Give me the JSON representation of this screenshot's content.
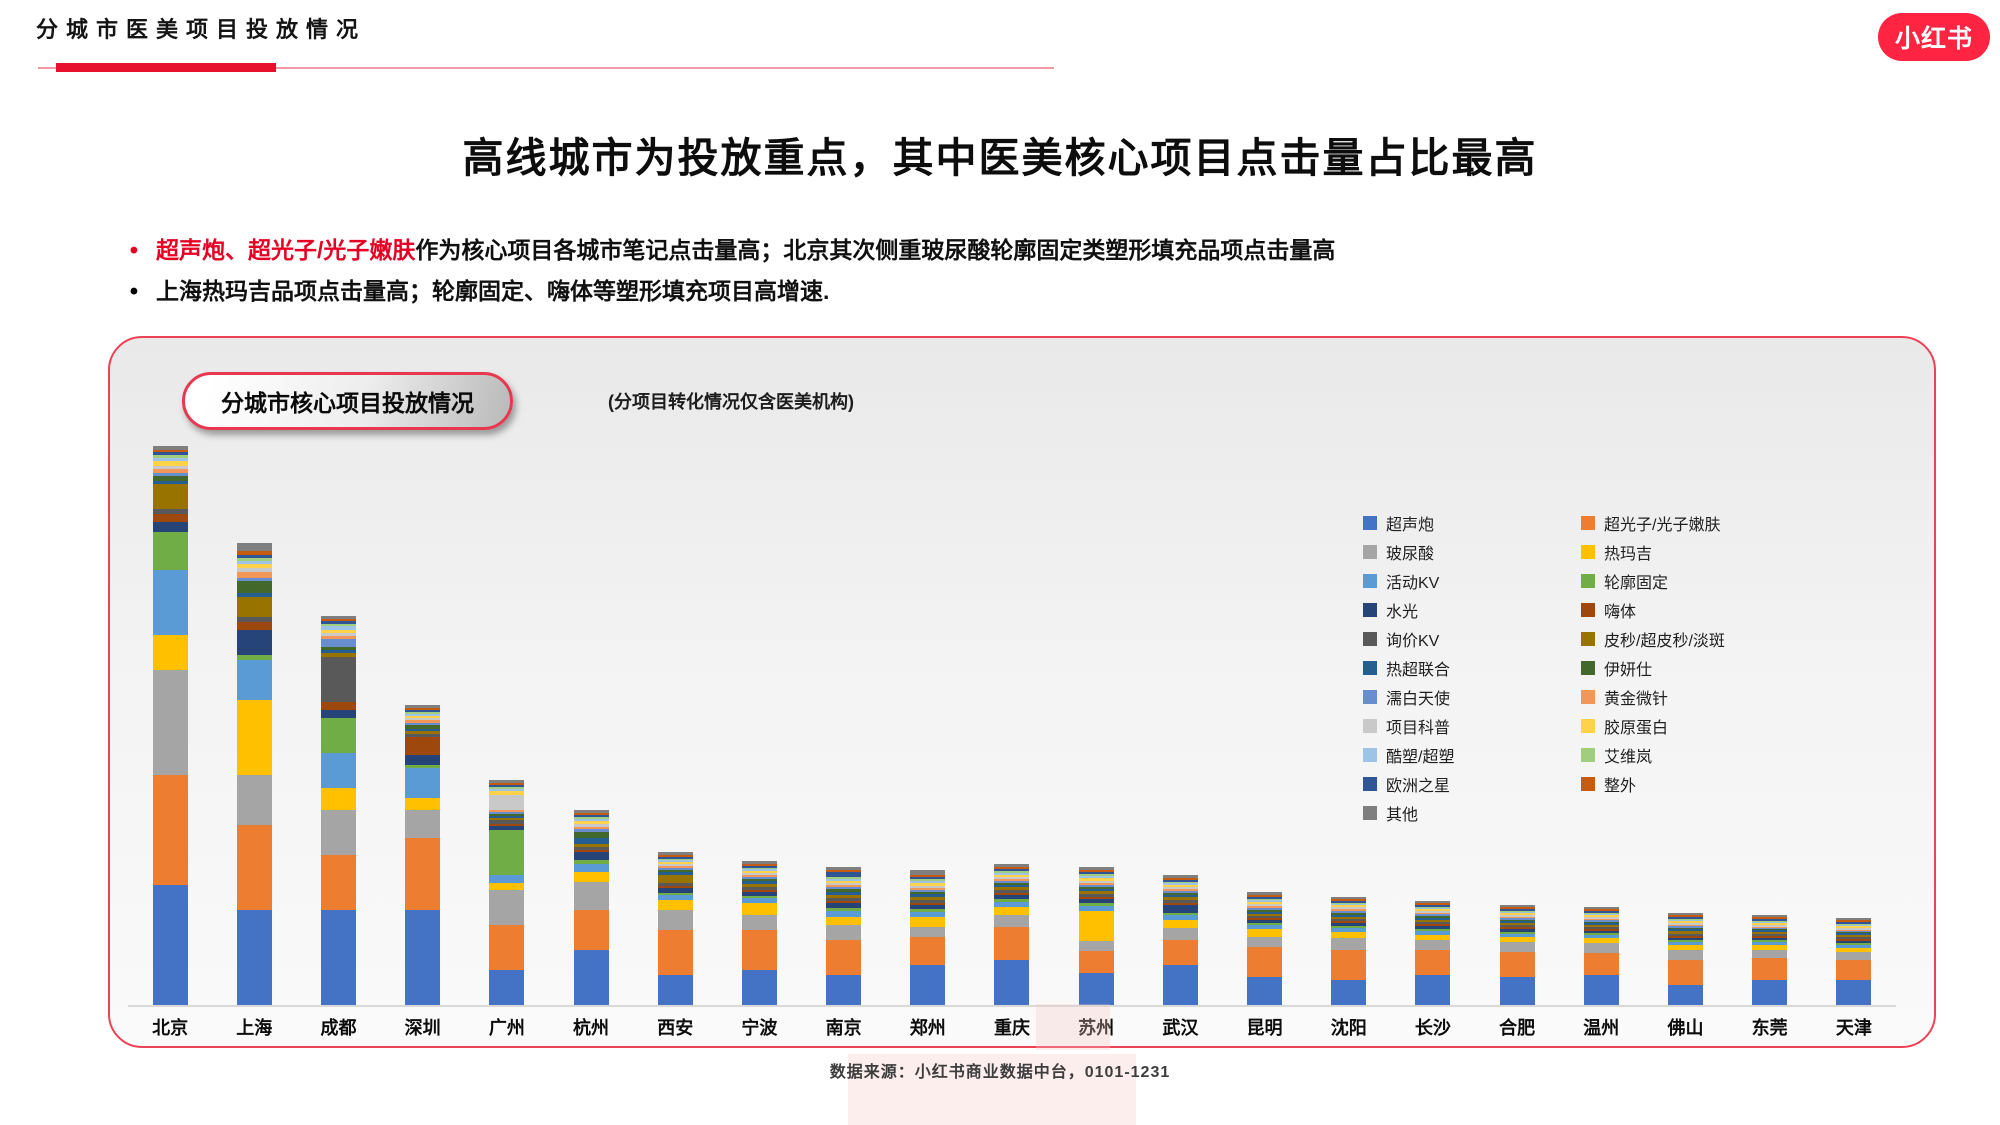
{
  "header": {
    "kicker": "分城市医美项目投放情况",
    "logo_text": "小红书"
  },
  "title": "高线城市为投放重点，其中医美核心项目点击量占比最高",
  "bullets": [
    {
      "highlight": "超声炮、超光子/光子嫩肤",
      "rest": "作为核心项目各城市笔记点击量高；北京其次侧重玻尿酸轮廓固定类塑形填充品项点击量高"
    },
    {
      "highlight": "",
      "rest": "上海热玛吉品项点击量高；轮廓固定、嗨体等塑形填充项目高增速."
    }
  ],
  "chart_card": {
    "pill_label": "分城市核心项目投放情况",
    "note": "(分项目转化情况仅含医美机构)"
  },
  "footer": {
    "source": "数据来源：小红书商业数据中台，0101-1231"
  },
  "chart_data": {
    "type": "bar",
    "stacked": true,
    "title": "分城市核心项目投放情况",
    "legend_position": "inside-right, two columns",
    "y_axis_visible": false,
    "values_are": "relative note-click volume, estimated from bar pixel heights",
    "categories": [
      "北京",
      "上海",
      "成都",
      "深圳",
      "广州",
      "杭州",
      "西安",
      "宁波",
      "南京",
      "郑州",
      "重庆",
      "苏州",
      "武汉",
      "昆明",
      "沈阳",
      "长沙",
      "合肥",
      "温州",
      "佛山",
      "东莞",
      "天津"
    ],
    "series": [
      {
        "name": "超声炮",
        "color": "#4472C4",
        "values": [
          120,
          95,
          95,
          95,
          35,
          55,
          30,
          35,
          30,
          40,
          45,
          32,
          40,
          28,
          25,
          30,
          28,
          30,
          20,
          25,
          25
        ]
      },
      {
        "name": "超光子/光子嫩肤",
        "color": "#ED7D31",
        "values": [
          110,
          85,
          55,
          72,
          45,
          40,
          45,
          40,
          35,
          28,
          33,
          22,
          25,
          30,
          30,
          25,
          25,
          22,
          25,
          22,
          20
        ]
      },
      {
        "name": "玻尿酸",
        "color": "#A5A5A5",
        "values": [
          105,
          50,
          45,
          28,
          35,
          28,
          20,
          15,
          15,
          10,
          12,
          10,
          12,
          10,
          12,
          10,
          10,
          10,
          10,
          8,
          8
        ]
      },
      {
        "name": "热玛吉",
        "color": "#FFC000",
        "values": [
          35,
          75,
          22,
          12,
          7,
          10,
          10,
          12,
          8,
          10,
          8,
          30,
          8,
          8,
          6,
          5,
          5,
          5,
          5,
          5,
          4
        ]
      },
      {
        "name": "活动KV",
        "color": "#5B9BD5",
        "values": [
          65,
          40,
          35,
          30,
          8,
          8,
          5,
          5,
          6,
          5,
          5,
          5,
          5,
          4,
          4,
          4,
          3,
          3,
          3,
          3,
          3
        ]
      },
      {
        "name": "轮廓固定",
        "color": "#70AD47",
        "values": [
          38,
          5,
          35,
          3,
          45,
          4,
          2,
          2,
          3,
          3,
          3,
          3,
          2,
          2,
          2,
          2,
          2,
          2,
          2,
          2,
          2
        ]
      },
      {
        "name": "水光",
        "color": "#264478",
        "values": [
          10,
          25,
          8,
          10,
          4,
          8,
          5,
          4,
          5,
          4,
          4,
          4,
          8,
          3,
          3,
          3,
          3,
          2,
          2,
          2,
          2
        ]
      },
      {
        "name": "嗨体",
        "color": "#9E480E",
        "values": [
          8,
          8,
          8,
          18,
          2,
          2,
          2,
          2,
          2,
          2,
          2,
          2,
          2,
          2,
          2,
          2,
          2,
          2,
          2,
          2,
          2
        ]
      },
      {
        "name": "询价KV",
        "color": "#595959",
        "values": [
          5,
          5,
          45,
          3,
          4,
          3,
          3,
          3,
          3,
          3,
          3,
          3,
          3,
          2,
          2,
          2,
          2,
          2,
          2,
          2,
          2
        ]
      },
      {
        "name": "皮秒/超皮秒/淡斑",
        "color": "#997300",
        "values": [
          25,
          20,
          4,
          3,
          2,
          3,
          8,
          3,
          3,
          3,
          3,
          3,
          3,
          2,
          2,
          2,
          2,
          2,
          3,
          2,
          2
        ]
      },
      {
        "name": "热超联合",
        "color": "#255E91",
        "values": [
          3,
          4,
          3,
          2,
          2,
          6,
          3,
          3,
          3,
          3,
          2,
          2,
          2,
          2,
          2,
          2,
          2,
          2,
          2,
          2,
          2
        ]
      },
      {
        "name": "伊妍仕",
        "color": "#43682B",
        "values": [
          5,
          12,
          3,
          4,
          2,
          6,
          2,
          2,
          3,
          2,
          2,
          2,
          2,
          2,
          2,
          2,
          1,
          1,
          1,
          1,
          1
        ]
      },
      {
        "name": "濡白天使",
        "color": "#698ED0",
        "values": [
          3,
          3,
          8,
          2,
          2,
          3,
          2,
          2,
          2,
          2,
          2,
          2,
          2,
          2,
          2,
          2,
          2,
          2,
          2,
          1,
          1
        ]
      },
      {
        "name": "黄金微针",
        "color": "#F1975A",
        "values": [
          4,
          6,
          3,
          3,
          2,
          2,
          2,
          2,
          2,
          2,
          2,
          2,
          2,
          2,
          2,
          1,
          1,
          1,
          1,
          1,
          1
        ]
      },
      {
        "name": "项目科普",
        "color": "#C9C9C9",
        "values": [
          3,
          4,
          3,
          2,
          15,
          3,
          2,
          2,
          2,
          2,
          2,
          2,
          2,
          2,
          2,
          2,
          2,
          2,
          2,
          2,
          2
        ]
      },
      {
        "name": "胶原蛋白",
        "color": "#FFD24B",
        "values": [
          5,
          4,
          3,
          2,
          4,
          3,
          2,
          2,
          2,
          3,
          2,
          3,
          2,
          2,
          2,
          2,
          2,
          2,
          2,
          2,
          2
        ]
      },
      {
        "name": "酷塑/超塑",
        "color": "#9DC3E6",
        "values": [
          3,
          3,
          4,
          2,
          2,
          2,
          2,
          2,
          2,
          2,
          2,
          2,
          2,
          2,
          1,
          1,
          1,
          1,
          1,
          1,
          1
        ]
      },
      {
        "name": "艾维岚",
        "color": "#A0CE7E",
        "values": [
          3,
          3,
          2,
          2,
          2,
          2,
          1,
          1,
          2,
          2,
          2,
          2,
          1,
          1,
          1,
          1,
          1,
          1,
          1,
          1,
          1
        ]
      },
      {
        "name": "欧洲之星",
        "color": "#2F5597",
        "values": [
          3,
          3,
          3,
          2,
          2,
          2,
          2,
          2,
          5,
          2,
          2,
          2,
          2,
          2,
          2,
          2,
          2,
          2,
          2,
          2,
          2
        ]
      },
      {
        "name": "整外",
        "color": "#C55A11",
        "values": [
          2,
          4,
          2,
          2,
          2,
          2,
          2,
          2,
          2,
          2,
          2,
          2,
          2,
          2,
          2,
          2,
          2,
          2,
          2,
          2,
          2
        ]
      },
      {
        "name": "其他",
        "color": "#7F7F7F",
        "values": [
          4,
          8,
          3,
          3,
          3,
          3,
          3,
          3,
          3,
          5,
          3,
          3,
          3,
          3,
          2,
          2,
          2,
          2,
          2,
          2,
          2
        ]
      }
    ]
  }
}
